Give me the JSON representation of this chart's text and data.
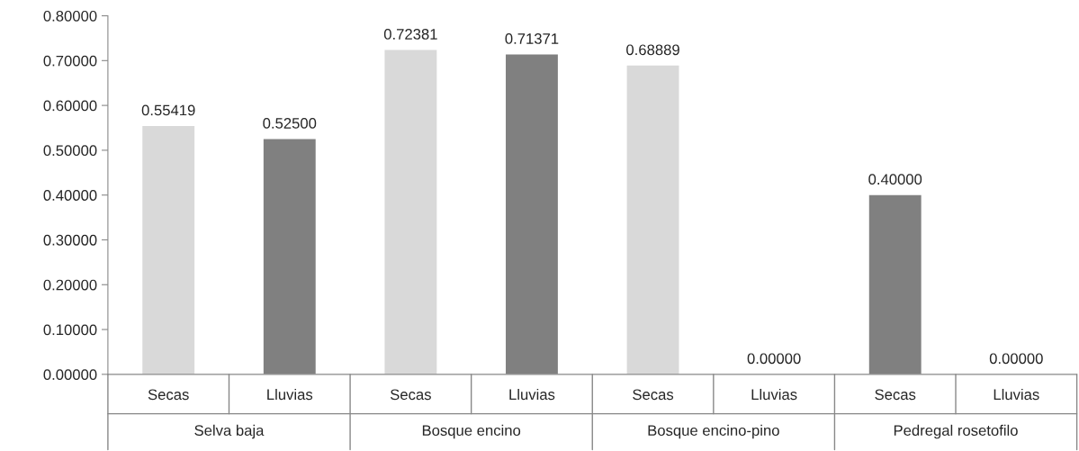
{
  "chart_data": {
    "type": "bar",
    "categories": [
      "Secas",
      "Lluvias",
      "Secas",
      "Lluvias",
      "Secas",
      "Lluvias",
      "Secas",
      "Lluvias"
    ],
    "values": [
      0.55419,
      0.525,
      0.72381,
      0.71371,
      0.68889,
      0,
      0.4,
      0
    ],
    "colors": [
      "#d9d9d9",
      "#808080",
      "#d9d9d9",
      "#808080",
      "#d9d9d9",
      "#808080",
      "#808080",
      "#808080"
    ],
    "value_labels": [
      "0.55419",
      "0.52500",
      "0.72381",
      "0.71371",
      "0.68889",
      "0.00000",
      "0.40000",
      "0.00000"
    ],
    "annotations": [
      "Selva baja",
      "Bosque encino",
      "Bosque encino-pino",
      "Pedregal rosetofilo"
    ],
    "ylim": [
      0,
      0.8
    ],
    "yticks": [
      {
        "value": 0,
        "label": "0.00000"
      },
      {
        "value": 0.1,
        "label": "0.10000"
      },
      {
        "value": 0.2,
        "label": "0.20000"
      },
      {
        "value": 0.3,
        "label": "0.30000"
      },
      {
        "value": 0.4,
        "label": "0.40000"
      },
      {
        "value": 0.5,
        "label": "0.50000"
      },
      {
        "value": 0.6,
        "label": "0.60000"
      },
      {
        "value": 0.7,
        "label": "0.70000"
      },
      {
        "value": 0.8,
        "label": "0.80000"
      }
    ],
    "grid": false,
    "legend": false
  }
}
